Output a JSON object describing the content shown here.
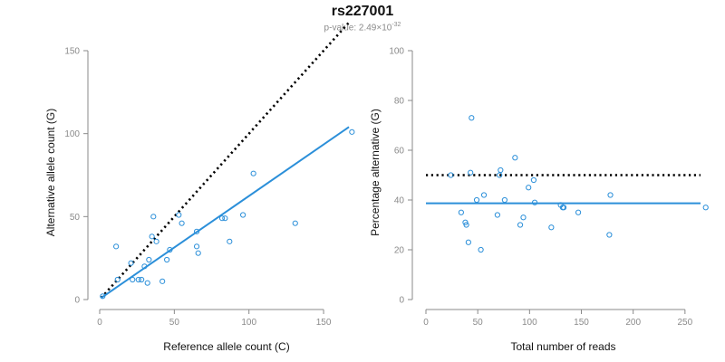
{
  "header": {
    "title": "rs227001",
    "subtitle_prefix": "p-value: 2.49×10",
    "subtitle_exponent": "-32"
  },
  "colors": {
    "points": "#2b8fd9",
    "fit_line": "#2b8fd9",
    "reference_line": "#000000",
    "axis": "#8a8a8a"
  },
  "chart_data": [
    {
      "type": "scatter",
      "title": "",
      "xlabel": "Reference allele count (C)",
      "ylabel": "Alternative allele count (G)",
      "xlim": [
        0,
        170
      ],
      "ylim": [
        0,
        150
      ],
      "xticks": [
        0,
        50,
        100,
        150
      ],
      "yticks": [
        0,
        50,
        100,
        150
      ],
      "grid": false,
      "legend": "none",
      "points": [
        {
          "x": 2,
          "y": 2
        },
        {
          "x": 11,
          "y": 32
        },
        {
          "x": 12,
          "y": 12
        },
        {
          "x": 21,
          "y": 22
        },
        {
          "x": 22,
          "y": 12
        },
        {
          "x": 26,
          "y": 12
        },
        {
          "x": 28,
          "y": 12
        },
        {
          "x": 30,
          "y": 20
        },
        {
          "x": 32,
          "y": 10
        },
        {
          "x": 33,
          "y": 24
        },
        {
          "x": 35,
          "y": 38
        },
        {
          "x": 36,
          "y": 50
        },
        {
          "x": 38,
          "y": 35
        },
        {
          "x": 42,
          "y": 11
        },
        {
          "x": 45,
          "y": 24
        },
        {
          "x": 47,
          "y": 30
        },
        {
          "x": 53,
          "y": 51
        },
        {
          "x": 55,
          "y": 46
        },
        {
          "x": 65,
          "y": 41
        },
        {
          "x": 65,
          "y": 32
        },
        {
          "x": 66,
          "y": 28
        },
        {
          "x": 82,
          "y": 49
        },
        {
          "x": 84,
          "y": 49
        },
        {
          "x": 87,
          "y": 35
        },
        {
          "x": 96,
          "y": 51
        },
        {
          "x": 103,
          "y": 76
        },
        {
          "x": 131,
          "y": 46
        },
        {
          "x": 169,
          "y": 101
        }
      ],
      "fit_line": {
        "x": [
          1,
          167
        ],
        "y": [
          1,
          104
        ]
      },
      "reference_line": {
        "x": [
          1,
          167
        ],
        "y": [
          1,
          167
        ]
      }
    },
    {
      "type": "scatter",
      "title": "",
      "xlabel": "Total number of reads",
      "ylabel": "Percentage alternative (G)",
      "xlim": [
        0,
        265
      ],
      "ylim": [
        0,
        100
      ],
      "xticks": [
        0,
        50,
        100,
        150,
        200,
        250
      ],
      "yticks": [
        0,
        20,
        40,
        60,
        80,
        100
      ],
      "grid": false,
      "legend": "none",
      "points": [
        {
          "x": 24,
          "y": 50
        },
        {
          "x": 34,
          "y": 35
        },
        {
          "x": 38,
          "y": 31
        },
        {
          "x": 39,
          "y": 30
        },
        {
          "x": 41,
          "y": 23
        },
        {
          "x": 43,
          "y": 51
        },
        {
          "x": 44,
          "y": 73
        },
        {
          "x": 49,
          "y": 40
        },
        {
          "x": 53,
          "y": 20
        },
        {
          "x": 56,
          "y": 42
        },
        {
          "x": 69,
          "y": 34
        },
        {
          "x": 71,
          "y": 50
        },
        {
          "x": 72,
          "y": 52
        },
        {
          "x": 76,
          "y": 40
        },
        {
          "x": 86,
          "y": 57
        },
        {
          "x": 91,
          "y": 30
        },
        {
          "x": 94,
          "y": 33
        },
        {
          "x": 99,
          "y": 45
        },
        {
          "x": 104,
          "y": 48
        },
        {
          "x": 105,
          "y": 39
        },
        {
          "x": 121,
          "y": 29
        },
        {
          "x": 130,
          "y": 38
        },
        {
          "x": 132,
          "y": 37
        },
        {
          "x": 133,
          "y": 37
        },
        {
          "x": 147,
          "y": 35
        },
        {
          "x": 177,
          "y": 26
        },
        {
          "x": 178,
          "y": 42
        },
        {
          "x": 270,
          "y": 37
        }
      ],
      "fit_line": {
        "x": [
          0,
          265
        ],
        "y": [
          38.7,
          38.7
        ]
      },
      "reference_line": {
        "x": [
          0,
          265
        ],
        "y": [
          50,
          50
        ]
      }
    }
  ]
}
